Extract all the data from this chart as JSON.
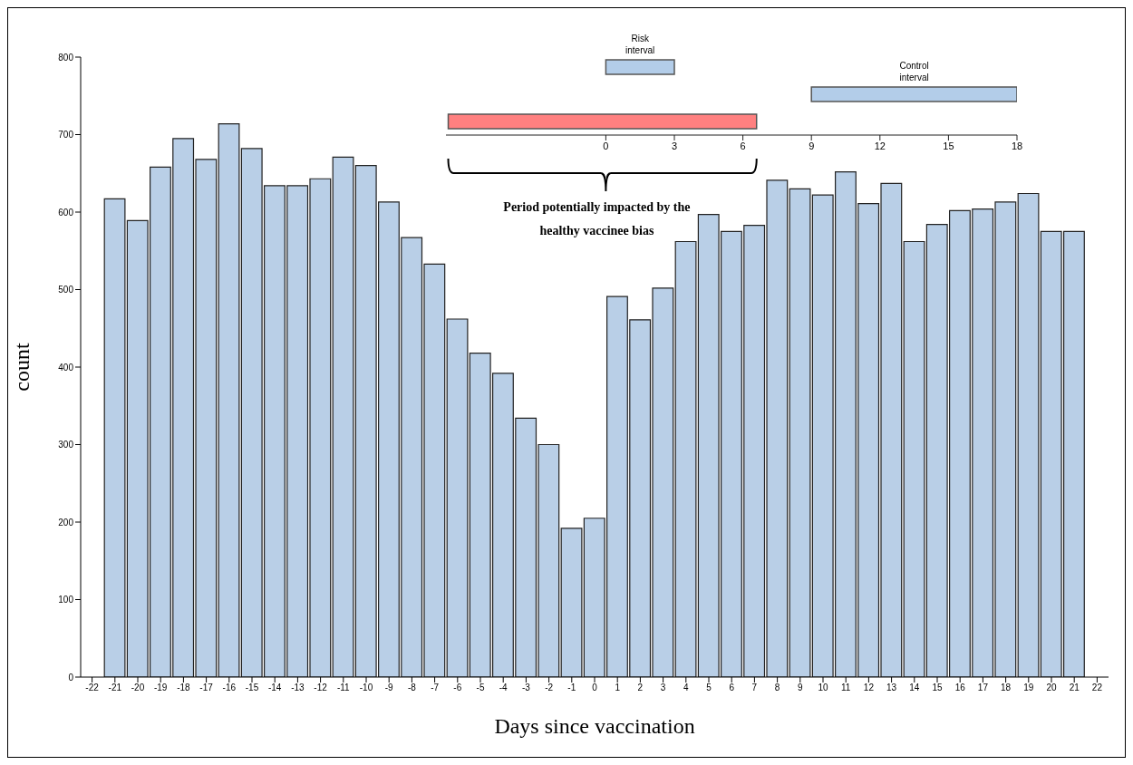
{
  "chart_data": [
    {
      "type": "histogram",
      "xlabel": "Days since vaccination",
      "ylabel": "count",
      "bins": [
        -21.5,
        -20.5,
        -19.5,
        -18.5,
        -17.5,
        -16.5,
        -15.5,
        -14.5,
        -13.5,
        -12.5,
        -11.5,
        -10.5,
        -9.5,
        -8.5,
        -7.5,
        -6.5,
        -5.5,
        -4.5,
        -3.5,
        -2.5,
        -1.5,
        -0.5,
        0.5,
        1.5,
        2.5,
        3.5,
        4.5,
        5.5,
        6.5,
        7.5,
        8.5,
        9.5,
        10.5,
        11.5,
        12.5,
        13.5,
        14.5,
        15.5,
        16.5,
        17.5,
        18.5,
        19.5,
        20.5,
        21.5
      ],
      "values": [
        617,
        589,
        658,
        695,
        668,
        714,
        682,
        634,
        634,
        643,
        671,
        660,
        613,
        567,
        533,
        462,
        418,
        392,
        334,
        300,
        192,
        205,
        491,
        461,
        502,
        562,
        597,
        575,
        583,
        641,
        630,
        622,
        652,
        611,
        637,
        562,
        584,
        602,
        604,
        613,
        624,
        575,
        575
      ],
      "color": "#b9cfe7",
      "xlim": [
        -22.5,
        22.5
      ],
      "xticks": [
        -22,
        -21,
        -20,
        -19,
        -18,
        -17,
        -16,
        -15,
        -14,
        -13,
        -12,
        -11,
        -10,
        -9,
        -8,
        -7,
        -6,
        -5,
        -4,
        -3,
        -2,
        -1,
        0,
        1,
        2,
        3,
        4,
        5,
        6,
        7,
        8,
        9,
        10,
        11,
        12,
        13,
        14,
        15,
        16,
        17,
        18,
        19,
        20,
        21,
        22
      ],
      "ylim": [
        0,
        800
      ],
      "yticks": [
        0,
        100,
        200,
        300,
        400,
        500,
        600,
        700,
        800
      ]
    },
    {
      "type": "bar",
      "orientation": "horizontal",
      "categories": [
        null,
        null,
        null
      ],
      "base": [
        0,
        9,
        -6.9
      ],
      "values": [
        3,
        9,
        13.5
      ],
      "colors": [
        "#b3cde9",
        "#b3cde9",
        "#ff8080"
      ],
      "xlim": [
        -7,
        18
      ],
      "xticks": [
        0,
        3,
        6,
        9,
        12,
        15,
        18
      ],
      "annotations": [
        "Risk interval",
        "Control interval",
        "Period potentially impacted  by the healthy vaccinee bias"
      ]
    }
  ]
}
